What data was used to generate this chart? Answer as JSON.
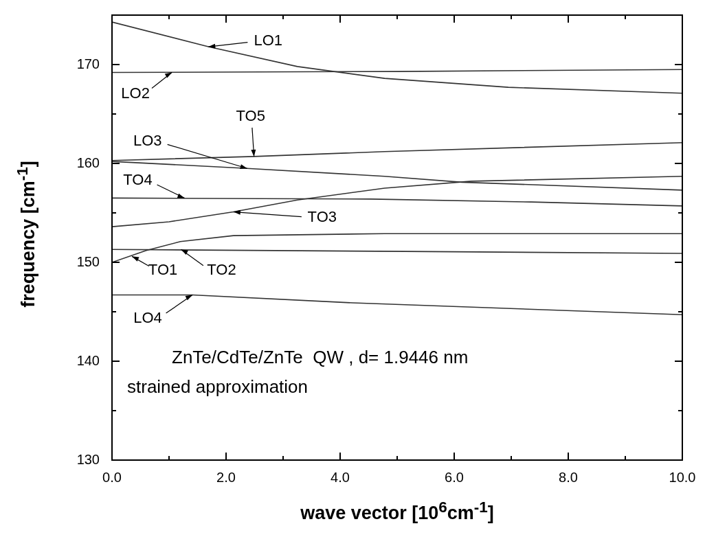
{
  "chart_data": {
    "type": "line",
    "xlabel": "wave vector [10$^{6}$cm$^{-1}$]",
    "ylabel": "frequency [cm$^{-1}$]",
    "xlim": [
      0,
      10
    ],
    "ylim": [
      130,
      175
    ],
    "xticks": [
      {
        "value": 0,
        "label": "0.0"
      },
      {
        "value": 1,
        "label": null
      },
      {
        "value": 2,
        "label": "2.0"
      },
      {
        "value": 3,
        "label": null
      },
      {
        "value": 4,
        "label": "4.0"
      },
      {
        "value": 5,
        "label": null
      },
      {
        "value": 6,
        "label": "6.0"
      },
      {
        "value": 7,
        "label": null
      },
      {
        "value": 8,
        "label": "8.0"
      },
      {
        "value": 9,
        "label": null
      },
      {
        "value": 10,
        "label": "10.0"
      }
    ],
    "yticks": [
      130,
      {
        "value": 135,
        "label": null
      },
      140,
      {
        "value": 145,
        "label": null
      },
      150,
      {
        "value": 155,
        "label": null
      },
      160,
      {
        "value": 165,
        "label": null
      },
      170
    ],
    "grid": false,
    "legend": false,
    "marker": "none",
    "line_style": "solid",
    "series": [
      {
        "color": "#333333",
        "x": [
          0,
          1.69,
          3.25,
          4.78,
          6.95,
          10
        ],
        "values": [
          174.3,
          171.8,
          169.8,
          168.6,
          167.7,
          167.1
        ]
      },
      {
        "color": "#333333",
        "x": [
          0,
          5,
          10
        ],
        "values": [
          169.2,
          169.3,
          169.5
        ]
      },
      {
        "color": "#333333",
        "x": [
          0,
          2.49,
          4.78,
          10
        ],
        "values": [
          160.3,
          160.7,
          161.2,
          162.1
        ]
      },
      {
        "color": "#333333",
        "x": [
          0,
          2.37,
          4.78,
          6.14,
          10
        ],
        "values": [
          160.2,
          159.5,
          158.7,
          158.1,
          157.3
        ]
      },
      {
        "color": "#333333",
        "x": [
          0,
          4.54,
          7.35,
          10
        ],
        "values": [
          156.5,
          156.4,
          156.1,
          155.7
        ]
      },
      {
        "color": "#333333",
        "x": [
          0,
          1,
          2.13,
          3.25,
          4.78,
          6.3,
          10
        ],
        "values": [
          153.6,
          154.1,
          155.1,
          156.3,
          157.5,
          158.2,
          158.7
        ]
      },
      {
        "color": "#333333",
        "x": [
          0,
          0.6,
          1.2,
          2.13,
          4.78,
          10
        ],
        "values": [
          150,
          151.2,
          152.1,
          152.7,
          152.9,
          152.9
        ]
      },
      {
        "color": "#333333",
        "x": [
          0,
          5.14,
          10
        ],
        "values": [
          151.3,
          151.1,
          150.9
        ]
      },
      {
        "color": "#333333",
        "x": [
          0,
          1.41,
          4.22,
          10
        ],
        "values": [
          146.7,
          146.7,
          145.9,
          144.7
        ]
      }
    ],
    "annotations": [
      {
        "text": "LO1",
        "x": 1.69,
        "y": 171.8
      },
      {
        "text": "LO2",
        "x": 1.05,
        "y": 169.2
      },
      {
        "text": "TO5",
        "x": 2.49,
        "y": 160.7
      },
      {
        "text": "LO3",
        "x": 2.37,
        "y": 159.5
      },
      {
        "text": "TO4",
        "x": 1.27,
        "y": 156.5
      },
      {
        "text": "TO3",
        "x": 2.13,
        "y": 155.1
      },
      {
        "text": "TO1",
        "x": 0.35,
        "y": 150.6
      },
      {
        "text": "TO2",
        "x": 1.21,
        "y": 151.3
      },
      {
        "text": "LO4",
        "x": 1.41,
        "y": 146.7
      },
      "ZnTe/CdTe/ZnTe  QW , d= 1.9446 nm",
      "strained approximation"
    ]
  }
}
